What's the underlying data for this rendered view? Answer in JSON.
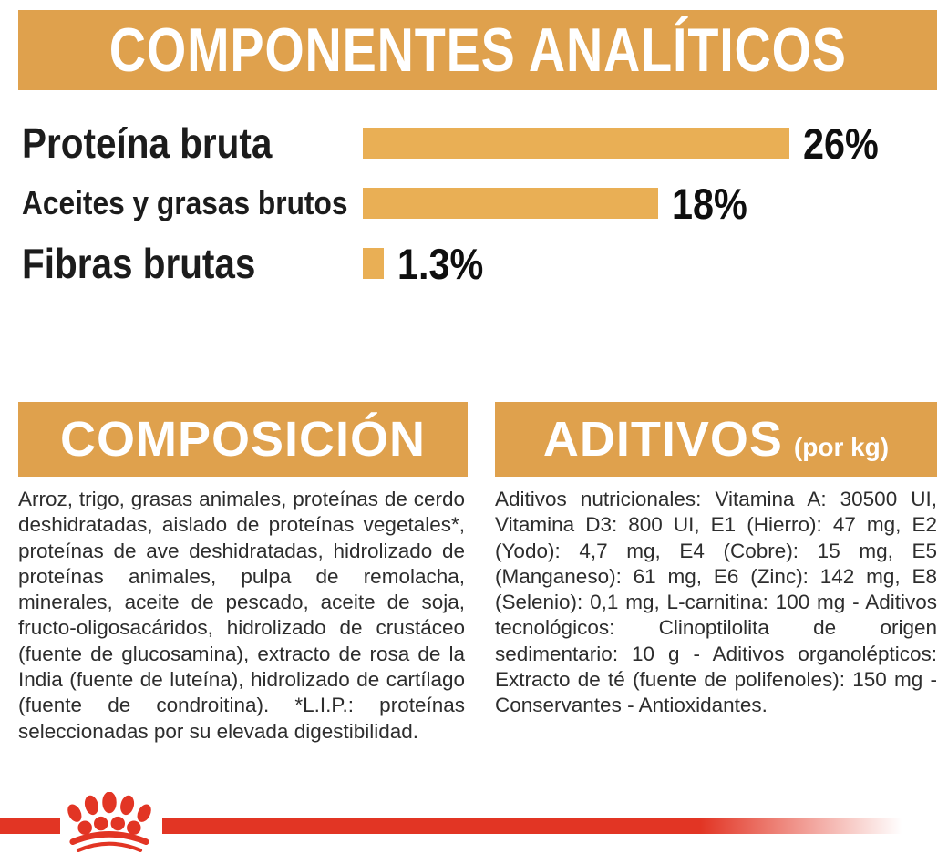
{
  "header": {
    "title": "COMPONENTES ANALÍTICOS"
  },
  "chart_data": {
    "type": "bar",
    "orientation": "horizontal",
    "title": "COMPONENTES ANALÍTICOS",
    "categories": [
      "Proteína bruta",
      "Aceites y grasas brutos",
      "Fibras brutas"
    ],
    "values": [
      26,
      18,
      1.3
    ],
    "value_labels": [
      "26%",
      "18%",
      "1.3%"
    ],
    "xlim": [
      0,
      26
    ],
    "grid": false,
    "legend": false,
    "bar_color": "#E9AF55"
  },
  "composition": {
    "title": "COMPOSICIÓN",
    "body": "Arroz, trigo, grasas animales, proteínas de cerdo deshidratadas, aislado de proteínas vegetales*, proteínas de ave deshidratadas, hidrolizado de proteínas animales, pulpa de remolacha, minerales, aceite de pescado, aceite de soja, fructo-oligosacáridos, hidrolizado de crustáceo (fuente de glucosamina), extracto de rosa de la India (fuente de luteína), hidrolizado de cartílago (fuente de condroitina). *L.I.P.: proteínas seleccionadas por su elevada digestibilidad."
  },
  "additives": {
    "title": "ADITIVOS",
    "title_suffix": "(por kg)",
    "body": "Aditivos nutricionales: Vitamina A: 30500 UI, Vitamina D3: 800 UI, E1 (Hierro): 47 mg, E2 (Yodo): 4,7 mg, E4 (Cobre): 15 mg, E5 (Manganeso): 61 mg, E6 (Zinc): 142 mg, E8 (Selenio): 0,1 mg, L-carnitina: 100 mg - Aditivos tecnológicos: Clinoptilolita de origen sedimentario: 10 g - Aditivos organolépticos: Extracto de té (fuente de polifenoles): 150 mg - Conservantes - Antioxidantes."
  },
  "footer": {
    "logo": "royal-canin-paw-crown"
  },
  "colors": {
    "accent_tan": "#DFA14D",
    "bar_tan": "#E9AF55",
    "brand_red": "#E23524",
    "text_dark": "#2D2D2D"
  }
}
